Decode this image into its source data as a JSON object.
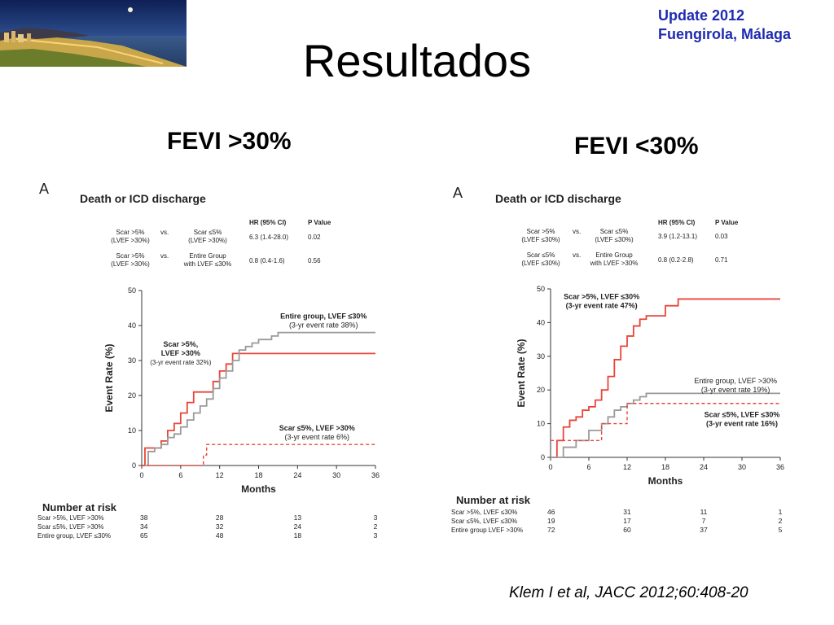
{
  "header": {
    "update_line1": "Update 2012",
    "update_line2": "Fuengirola, Málaga",
    "title": "Resultados",
    "citation": "Klem I et al, JACC 2012;60:408-20"
  },
  "colors": {
    "accent_blue": "#1f2bb0",
    "red_series": "#e8453a",
    "gray_series": "#9a9a9a"
  },
  "photo": {
    "icon": "beach-night-photo"
  },
  "chart_data": [
    {
      "subtitle": "FEVI >30%",
      "type": "line",
      "panel_letter": "A",
      "title": "Death or ICD discharge",
      "xlabel": "Months",
      "ylabel": "Event Rate (%)",
      "xlim": [
        0,
        36
      ],
      "ylim": [
        0,
        50
      ],
      "xticks": [
        0,
        6,
        12,
        18,
        24,
        30,
        36
      ],
      "yticks": [
        0,
        10,
        20,
        30,
        40,
        50
      ],
      "hr_table": {
        "headers": [
          "HR (95% CI)",
          "P Value"
        ],
        "rows": [
          {
            "left": [
              "Scar >5%",
              "(LVEF >30%)"
            ],
            "vs": "vs.",
            "right": [
              "Scar ≤5%",
              "(LVEF >30%)"
            ],
            "hr": "6.3 (1.4-28.0)",
            "p": "0.02"
          },
          {
            "left": [
              "Scar >5%",
              "(LVEF >30%)"
            ],
            "vs": "vs.",
            "right": [
              "Entire Group",
              "with LVEF ≤30%"
            ],
            "hr": "0.8 (0.4-1.6)",
            "p": "0.56"
          }
        ]
      },
      "series": [
        {
          "name": "Scar >5%, LVEF >30%",
          "color": "#e8453a",
          "style": "solid",
          "x": [
            0,
            0.5,
            2,
            3,
            4,
            5,
            6,
            7,
            8,
            9,
            10,
            11,
            12,
            13,
            14,
            36
          ],
          "y": [
            0,
            5,
            5,
            7,
            10,
            12,
            15,
            18,
            21,
            21,
            21,
            24,
            27,
            29,
            32,
            32
          ]
        },
        {
          "name": "Entire group, LVEF ≤30%",
          "color": "#9a9a9a",
          "style": "solid",
          "x": [
            0,
            1,
            2,
            3,
            4,
            5,
            6,
            7,
            8,
            9,
            10,
            11,
            12,
            13,
            14,
            15,
            16,
            17,
            18,
            19,
            20,
            21,
            36
          ],
          "y": [
            0,
            4,
            5,
            6,
            8,
            9,
            11,
            13,
            15,
            17,
            19,
            22,
            25,
            27,
            30,
            33,
            34,
            35,
            36,
            36,
            37,
            38,
            38
          ]
        },
        {
          "name": "Scar ≤5%, LVEF >30%",
          "color": "#e8453a",
          "style": "dashed",
          "x": [
            0,
            9,
            9.5,
            10,
            36
          ],
          "y": [
            0,
            0,
            3,
            6,
            6
          ]
        }
      ],
      "annotations": [
        {
          "lines": [
            "Entire group, LVEF ≤30%",
            "(3-yr event rate 38%)"
          ],
          "at": [
            28,
            42
          ],
          "bold": true
        },
        {
          "lines": [
            "Scar >5%,",
            "LVEF >30%",
            "(3-yr event rate 32%)"
          ],
          "at": [
            6,
            34
          ],
          "bold": true
        },
        {
          "lines": [
            "Scar ≤5%, LVEF >30%",
            "(3-yr event rate 6%)"
          ],
          "at": [
            27,
            10
          ],
          "bold": true
        }
      ],
      "risk_table": {
        "title": "Number at risk",
        "columns": [
          0,
          12,
          24,
          36
        ],
        "rows": [
          {
            "label": "Scar >5%, LVEF >30%",
            "values": [
              "38",
              "28",
              "13",
              "3"
            ]
          },
          {
            "label": "Scar ≤5%, LVEF >30%",
            "values": [
              "34",
              "32",
              "24",
              "2"
            ]
          },
          {
            "label": "Entire group, LVEF ≤30%",
            "values": [
              "65",
              "48",
              "18",
              "3"
            ]
          }
        ]
      }
    },
    {
      "subtitle": "FEVI <30%",
      "type": "line",
      "panel_letter": "A",
      "title": "Death or ICD discharge",
      "xlabel": "Months",
      "ylabel": "Event Rate (%)",
      "xlim": [
        0,
        36
      ],
      "ylim": [
        0,
        50
      ],
      "xticks": [
        0,
        6,
        12,
        18,
        24,
        30,
        36
      ],
      "yticks": [
        0,
        10,
        20,
        30,
        40,
        50
      ],
      "hr_table": {
        "headers": [
          "HR (95% CI)",
          "P Value"
        ],
        "rows": [
          {
            "left": [
              "Scar >5%",
              "(LVEF ≤30%)"
            ],
            "vs": "vs.",
            "right": [
              "Scar ≤5%",
              "(LVEF ≤30%)"
            ],
            "hr": "3.9 (1.2-13.1)",
            "p": "0.03"
          },
          {
            "left": [
              "Scar ≤5%",
              "(LVEF ≤30%)"
            ],
            "vs": "vs.",
            "right": [
              "Entire Group",
              "with LVEF >30%"
            ],
            "hr": "0.8 (0.2-2.8)",
            "p": "0.71"
          }
        ]
      },
      "series": [
        {
          "name": "Scar >5%, LVEF ≤30%",
          "color": "#e8453a",
          "style": "solid",
          "x": [
            0,
            1,
            2,
            3,
            4,
            5,
            6,
            7,
            8,
            9,
            10,
            11,
            12,
            13,
            14,
            15,
            16,
            18,
            20,
            24,
            36
          ],
          "y": [
            0,
            5,
            9,
            11,
            12,
            14,
            15,
            17,
            20,
            24,
            29,
            33,
            36,
            39,
            41,
            42,
            42,
            45,
            47,
            47,
            47
          ]
        },
        {
          "name": "Entire group, LVEF >30%",
          "color": "#9a9a9a",
          "style": "solid",
          "x": [
            0,
            2,
            4,
            6,
            8,
            9,
            10,
            11,
            12,
            13,
            14,
            15,
            16,
            36
          ],
          "y": [
            0,
            3,
            5,
            8,
            10,
            12,
            14,
            15,
            16,
            17,
            18,
            19,
            19,
            19
          ]
        },
        {
          "name": "Scar ≤5%, LVEF ≤30%",
          "color": "#e8453a",
          "style": "dashed",
          "x": [
            0,
            4,
            4,
            8,
            8,
            12,
            12,
            36
          ],
          "y": [
            5,
            5,
            5,
            5,
            10,
            10,
            16,
            16
          ]
        }
      ],
      "annotations": [
        {
          "lines": [
            "Scar >5%, LVEF ≤30%",
            "(3-yr event rate 47%)"
          ],
          "at": [
            8,
            47
          ],
          "bold": true
        },
        {
          "lines": [
            "Entire group, LVEF >30%",
            "(3-yr event rate 19%)"
          ],
          "at": [
            29,
            22
          ],
          "bold": false
        },
        {
          "lines": [
            "Scar ≤5%, LVEF ≤30%",
            "(3-yr event rate 16%)"
          ],
          "at": [
            30,
            12
          ],
          "bold": true
        }
      ],
      "risk_table": {
        "title": "Number at risk",
        "columns": [
          0,
          12,
          24,
          36
        ],
        "rows": [
          {
            "label": "Scar >5%, LVEF ≤30%",
            "values": [
              "46",
              "31",
              "11",
              "1"
            ]
          },
          {
            "label": "Scar ≤5%, LVEF ≤30%",
            "values": [
              "19",
              "17",
              "7",
              "2"
            ]
          },
          {
            "label": "Entire group LVEF >30%",
            "values": [
              "72",
              "60",
              "37",
              "5"
            ]
          }
        ]
      }
    }
  ]
}
